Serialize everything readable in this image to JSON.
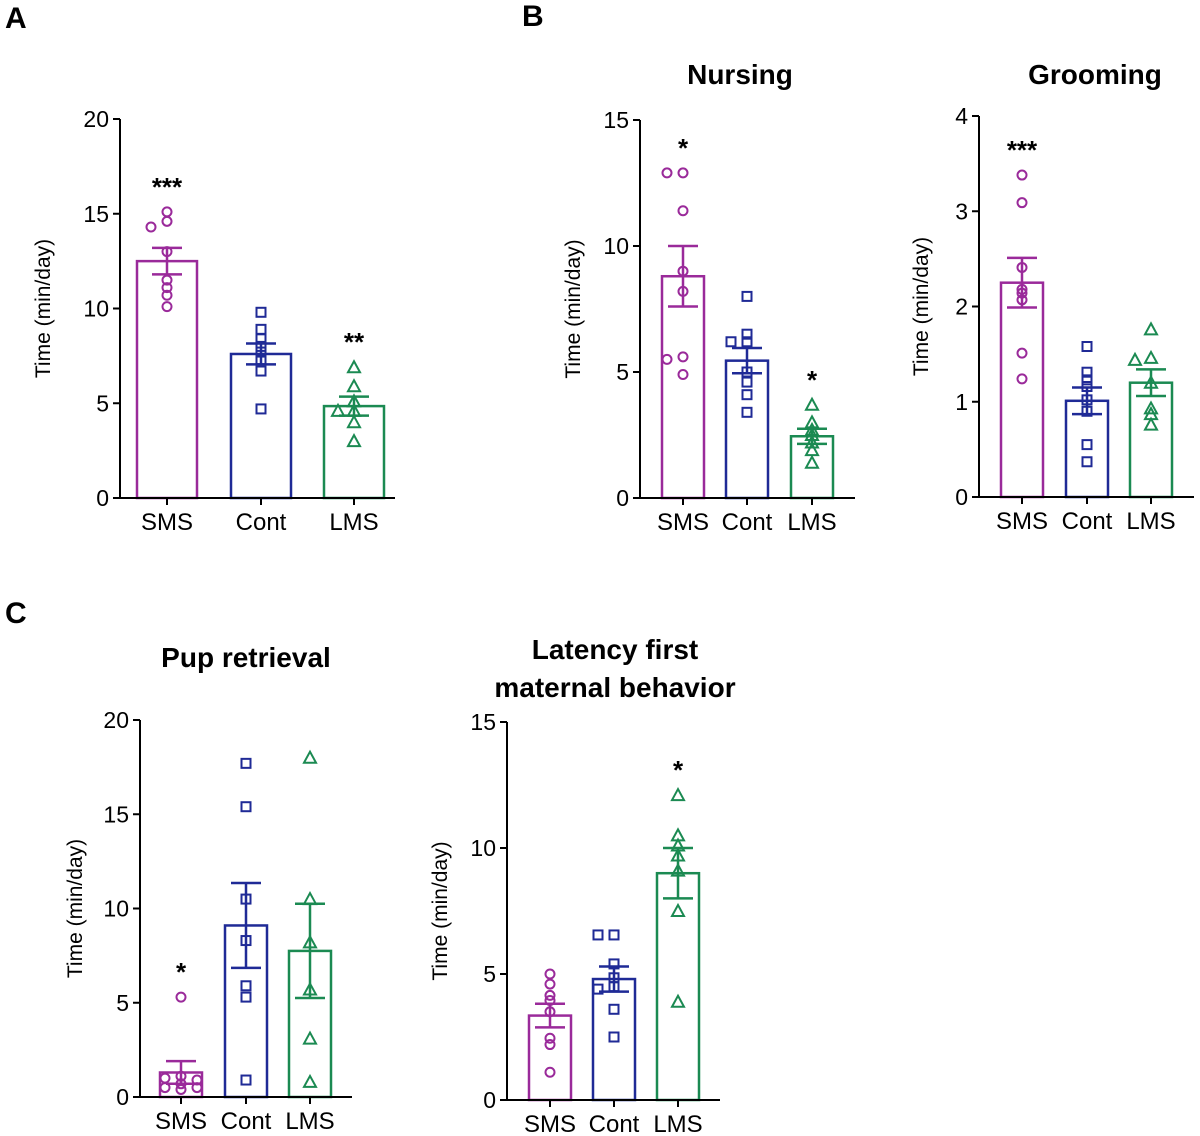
{
  "panels": {
    "a": "A",
    "b": "B",
    "c": "C"
  },
  "colors": {
    "SMS": "#9a2a9a",
    "Cont": "#1f2a96",
    "LMS": "#1b8a52"
  },
  "markers": {
    "SMS": "circle",
    "Cont": "square",
    "LMS": "triangle"
  },
  "chart_data": [
    {
      "type": "bar",
      "panel": "A",
      "title": "",
      "xlabel": "",
      "ylabel": "Time (min/day)",
      "ylim": [
        0,
        20
      ],
      "yticks": [
        0,
        5,
        10,
        15,
        20
      ],
      "grid": false,
      "categories": [
        "SMS",
        "Cont",
        "LMS"
      ],
      "values": [
        12.5,
        7.6,
        4.85
      ],
      "sem": [
        0.7,
        0.55,
        0.5
      ],
      "points": [
        [
          15.1,
          14.6,
          14.3,
          13.0,
          11.5,
          11.1,
          10.7,
          10.1
        ],
        [
          9.8,
          8.9,
          8.4,
          8.0,
          7.7,
          7.3,
          6.7,
          4.7
        ],
        [
          6.9,
          5.9,
          5.1,
          4.6,
          4.6,
          4.0,
          3.0
        ]
      ],
      "significance": [
        "***",
        "",
        "**"
      ]
    },
    {
      "type": "bar",
      "panel": "B",
      "title": "Nursing",
      "xlabel": "",
      "ylabel": "Time (min/day)",
      "ylim": [
        0,
        15
      ],
      "yticks": [
        0,
        5,
        10,
        15
      ],
      "grid": false,
      "categories": [
        "SMS",
        "Cont",
        "LMS"
      ],
      "values": [
        8.8,
        5.45,
        2.45
      ],
      "sem": [
        1.2,
        0.5,
        0.3
      ],
      "points": [
        [
          12.9,
          12.9,
          11.4,
          9.0,
          8.2,
          5.6,
          5.5,
          4.9
        ],
        [
          8.0,
          6.5,
          6.2,
          6.2,
          5.0,
          4.6,
          4.1,
          3.4
        ],
        [
          3.7,
          3.0,
          2.7,
          2.5,
          2.2,
          1.9,
          1.4
        ]
      ],
      "significance": [
        "*",
        "",
        "*"
      ]
    },
    {
      "type": "bar",
      "panel": "B",
      "title": "Grooming",
      "xlabel": "",
      "ylabel": "Time (min/day)",
      "ylim": [
        0,
        4
      ],
      "yticks": [
        0,
        1,
        2,
        3,
        4
      ],
      "grid": false,
      "categories": [
        "SMS",
        "Cont",
        "LMS"
      ],
      "values": [
        2.25,
        1.01,
        1.2
      ],
      "sem": [
        0.26,
        0.14,
        0.14
      ],
      "points": [
        [
          3.38,
          3.09,
          2.41,
          2.18,
          2.14,
          2.07,
          1.51,
          1.24
        ],
        [
          1.58,
          1.31,
          1.23,
          1.16,
          1.02,
          0.9,
          0.55,
          0.37
        ],
        [
          1.76,
          1.46,
          1.44,
          1.2,
          0.93,
          0.87,
          0.76
        ]
      ],
      "significance": [
        "***",
        "",
        ""
      ]
    },
    {
      "type": "bar",
      "panel": "C",
      "title": "Pup retrieval",
      "xlabel": "",
      "ylabel": "Time (min/day)",
      "ylim": [
        0,
        20
      ],
      "yticks": [
        0,
        5,
        10,
        15,
        20
      ],
      "grid": false,
      "categories": [
        "SMS",
        "Cont",
        "LMS"
      ],
      "values": [
        1.3,
        9.1,
        7.75
      ],
      "sem": [
        0.6,
        2.25,
        2.5
      ],
      "points": [
        [
          5.3,
          1.1,
          1.0,
          0.9,
          0.7,
          0.5,
          0.5,
          0.4
        ],
        [
          17.7,
          15.4,
          10.5,
          8.3,
          5.9,
          5.3,
          0.9
        ],
        [
          18.0,
          10.5,
          8.2,
          5.7,
          3.1,
          0.8
        ]
      ],
      "significance": [
        "*",
        "",
        ""
      ]
    },
    {
      "type": "bar",
      "panel": "C",
      "title": "Latency first maternal behavior",
      "title_lines": [
        "Latency first",
        "maternal behavior"
      ],
      "xlabel": "",
      "ylabel": "Time (min/day)",
      "ylim": [
        0,
        15
      ],
      "yticks": [
        0,
        5,
        10,
        15
      ],
      "grid": false,
      "categories": [
        "SMS",
        "Cont",
        "LMS"
      ],
      "values": [
        3.35,
        4.8,
        9.0
      ],
      "sem": [
        0.47,
        0.5,
        1.0
      ],
      "points": [
        [
          5.0,
          4.6,
          4.15,
          3.95,
          3.5,
          2.45,
          2.2,
          1.1
        ],
        [
          6.55,
          6.55,
          5.4,
          4.85,
          4.5,
          4.4,
          3.6,
          2.5
        ],
        [
          12.1,
          10.5,
          10.1,
          9.7,
          9.1,
          7.5,
          3.9
        ]
      ],
      "significance": [
        "",
        "",
        "*"
      ]
    }
  ]
}
